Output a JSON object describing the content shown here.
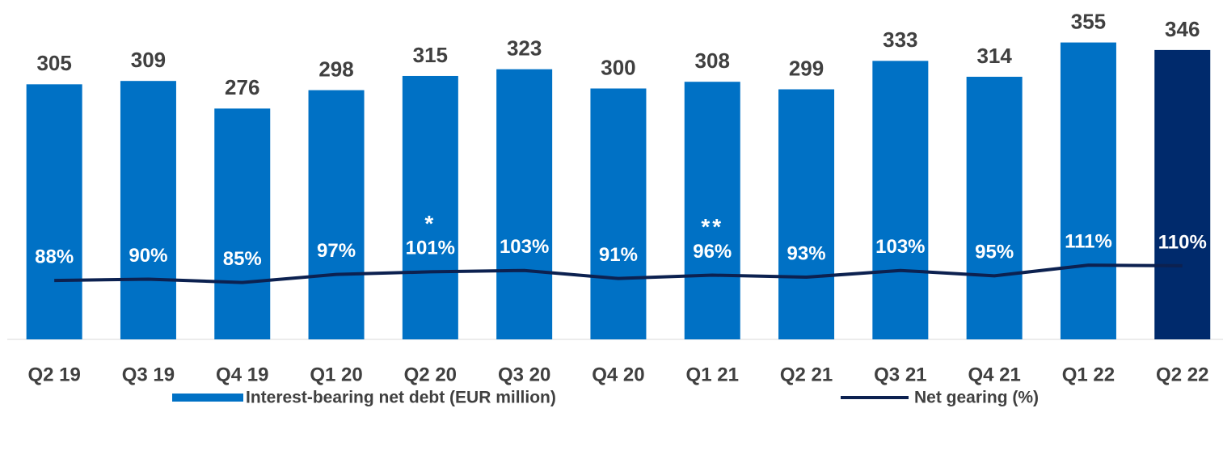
{
  "chart_data": {
    "type": "bar",
    "categories": [
      "Q2 19",
      "Q3 19",
      "Q4 19",
      "Q1 20",
      "Q2 20",
      "Q3 20",
      "Q4 20",
      "Q1 21",
      "Q2 21",
      "Q3 21",
      "Q4 21",
      "Q1 22",
      "Q2 22"
    ],
    "series": [
      {
        "name": "Interest-bearing net debt (EUR million)",
        "type": "bar",
        "color": "#0071c5",
        "colors": [
          "#0071c5",
          "#0071c5",
          "#0071c5",
          "#0071c5",
          "#0071c5",
          "#0071c5",
          "#0071c5",
          "#0071c5",
          "#0071c5",
          "#0071c5",
          "#0071c5",
          "#0071c5",
          "#002a6c"
        ],
        "values": [
          305,
          309,
          276,
          298,
          315,
          323,
          300,
          308,
          299,
          333,
          314,
          355,
          346
        ]
      },
      {
        "name": "Net gearing (%)",
        "type": "line",
        "axis": "y2",
        "color": "#0c2150",
        "values": [
          88,
          90,
          85,
          97,
          101,
          103,
          91,
          96,
          93,
          103,
          95,
          111,
          110
        ],
        "value_labels": [
          "88%",
          "90%",
          "85%",
          "97%",
          "101%",
          "103%",
          "91%",
          "96%",
          "93%",
          "103%",
          "95%",
          "111%",
          "110%"
        ]
      }
    ],
    "annotations": [
      {
        "text": "*",
        "category": "Q2 20"
      },
      {
        "text": "**",
        "category": "Q1 21"
      }
    ],
    "ylim": [
      0,
      400
    ],
    "y2lim": [
      0,
      500
    ],
    "legend": "bottom"
  }
}
